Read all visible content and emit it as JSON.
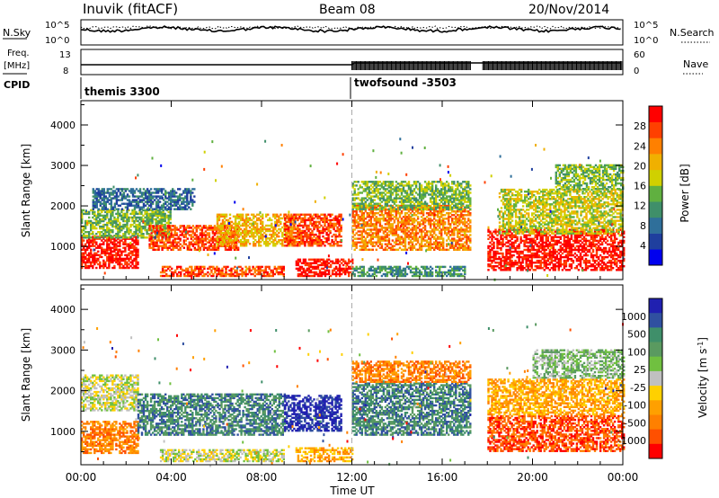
{
  "header": {
    "title": "Inuvik (fitACF)",
    "beam": "Beam 08",
    "date": "20/Nov/2014"
  },
  "top_panels": {
    "nsky_label": "N.Sky",
    "nsky_ticks": [
      "10^5",
      "10^0"
    ],
    "nsearch_label": "N.Search",
    "nsearch_ticks": [
      "10^5",
      "10^0"
    ],
    "freq_label_1": "Freq.",
    "freq_label_2": "[MHz]",
    "freq_ticks": [
      "13",
      "8"
    ],
    "nave_label": "Nave",
    "nave_ticks": [
      "60",
      "0"
    ],
    "cpid_label": "CPID",
    "cpid_segments": [
      {
        "name": "themis 3300",
        "start_hour": 0,
        "end_hour": 12
      },
      {
        "name": "twofsound -3503",
        "start_hour": 12,
        "end_hour": 24
      }
    ]
  },
  "x_axis": {
    "label": "Time UT",
    "ticks": [
      "00:00",
      "04:00",
      "08:00",
      "12:00",
      "16:00",
      "20:00",
      "00:00"
    ],
    "tick_hours": [
      0,
      4,
      8,
      12,
      16,
      20,
      24
    ]
  },
  "chart_data": [
    {
      "type": "heatmap",
      "title": "Power",
      "ylabel": "Slant Range [km]",
      "yticks": [
        "1000",
        "2000",
        "3000",
        "4000"
      ],
      "ytick_values": [
        1000,
        2000,
        3000,
        4000
      ],
      "ylim": [
        180,
        4600
      ],
      "xlim_hours": [
        0,
        24
      ],
      "colorbar": {
        "label": "Power [dB]",
        "ticks": [
          "4",
          "8",
          "12",
          "16",
          "20",
          "24",
          "28"
        ],
        "colors": [
          "#0000ee",
          "#1f3f9e",
          "#2f6f9a",
          "#3f8f6a",
          "#60b040",
          "#d0d000",
          "#f0b000",
          "#ff8000",
          "#ff4000",
          "#ff0000"
        ]
      },
      "data_gap_hours": [
        17.3,
        17.8
      ],
      "bands": [
        {
          "t0": 0.0,
          "t1": 2.5,
          "r0": 450,
          "r1": 1250,
          "level": 9
        },
        {
          "t0": 0.0,
          "t1": 4.0,
          "r0": 1200,
          "r1": 1900,
          "level": 4
        },
        {
          "t0": 0.5,
          "t1": 5.0,
          "r0": 1900,
          "r1": 2400,
          "level": 2
        },
        {
          "t0": 3.0,
          "t1": 7.0,
          "r0": 900,
          "r1": 1500,
          "level": 8
        },
        {
          "t0": 3.5,
          "t1": 9.0,
          "r0": 250,
          "r1": 500,
          "level": 8
        },
        {
          "t0": 6.0,
          "t1": 9.5,
          "r0": 1000,
          "r1": 1800,
          "level": 6
        },
        {
          "t0": 9.0,
          "t1": 11.5,
          "r0": 1000,
          "r1": 1800,
          "level": 8
        },
        {
          "t0": 9.5,
          "t1": 12.0,
          "r0": 250,
          "r1": 700,
          "level": 9
        },
        {
          "t0": 12.0,
          "t1": 17.2,
          "r0": 900,
          "r1": 2000,
          "level": 7
        },
        {
          "t0": 12.0,
          "t1": 17.2,
          "r0": 1900,
          "r1": 2600,
          "level": 4
        },
        {
          "t0": 12.0,
          "t1": 17.0,
          "r0": 250,
          "r1": 500,
          "level": 3
        },
        {
          "t0": 18.0,
          "t1": 24.0,
          "r0": 400,
          "r1": 1400,
          "level": 9
        },
        {
          "t0": 18.5,
          "t1": 24.0,
          "r0": 1300,
          "r1": 2400,
          "level": 5
        },
        {
          "t0": 21.0,
          "t1": 24.0,
          "r0": 2400,
          "r1": 3000,
          "level": 4
        }
      ]
    },
    {
      "type": "heatmap",
      "title": "Velocity",
      "ylabel": "Slant Range [km]",
      "yticks": [
        "1000",
        "2000",
        "3000",
        "4000"
      ],
      "ytick_values": [
        1000,
        2000,
        3000,
        4000
      ],
      "ylim": [
        180,
        4600
      ],
      "xlim_hours": [
        0,
        24
      ],
      "colorbar": {
        "label": "Velocity [m s^-1]",
        "ticks": [
          "1000",
          "500",
          "100",
          "25",
          "-25",
          "-100",
          "-500",
          "-1000"
        ],
        "colors": [
          "#2020b0",
          "#3050a0",
          "#3f8f6a",
          "#5a9a60",
          "#70c040",
          "#c0c0c0",
          "#ffd000",
          "#ffa000",
          "#ff8000",
          "#ff5000",
          "#ff0000"
        ]
      },
      "data_gap_hours": [
        17.3,
        17.8
      ],
      "bands": [
        {
          "t0": 0.0,
          "t1": 2.5,
          "r0": 450,
          "r1": 1250,
          "level": 8
        },
        {
          "t0": 0.0,
          "t1": 2.5,
          "r0": 1500,
          "r1": 2400,
          "level": 5
        },
        {
          "t0": 2.5,
          "t1": 9.0,
          "r0": 900,
          "r1": 1900,
          "level": 2
        },
        {
          "t0": 3.5,
          "t1": 9.0,
          "r0": 250,
          "r1": 550,
          "level": 5
        },
        {
          "t0": 9.0,
          "t1": 11.5,
          "r0": 1000,
          "r1": 1900,
          "level": 0
        },
        {
          "t0": 9.5,
          "t1": 12.0,
          "r0": 250,
          "r1": 600,
          "level": 7
        },
        {
          "t0": 12.0,
          "t1": 17.2,
          "r0": 900,
          "r1": 2200,
          "level": 2
        },
        {
          "t0": 12.0,
          "t1": 17.2,
          "r0": 2200,
          "r1": 2700,
          "level": 8
        },
        {
          "t0": 18.0,
          "t1": 24.0,
          "r0": 500,
          "r1": 1400,
          "level": 9
        },
        {
          "t0": 18.0,
          "t1": 24.0,
          "r0": 1400,
          "r1": 2300,
          "level": 7
        },
        {
          "t0": 20.0,
          "t1": 24.0,
          "r0": 2300,
          "r1": 3000,
          "level": 4
        }
      ]
    }
  ]
}
